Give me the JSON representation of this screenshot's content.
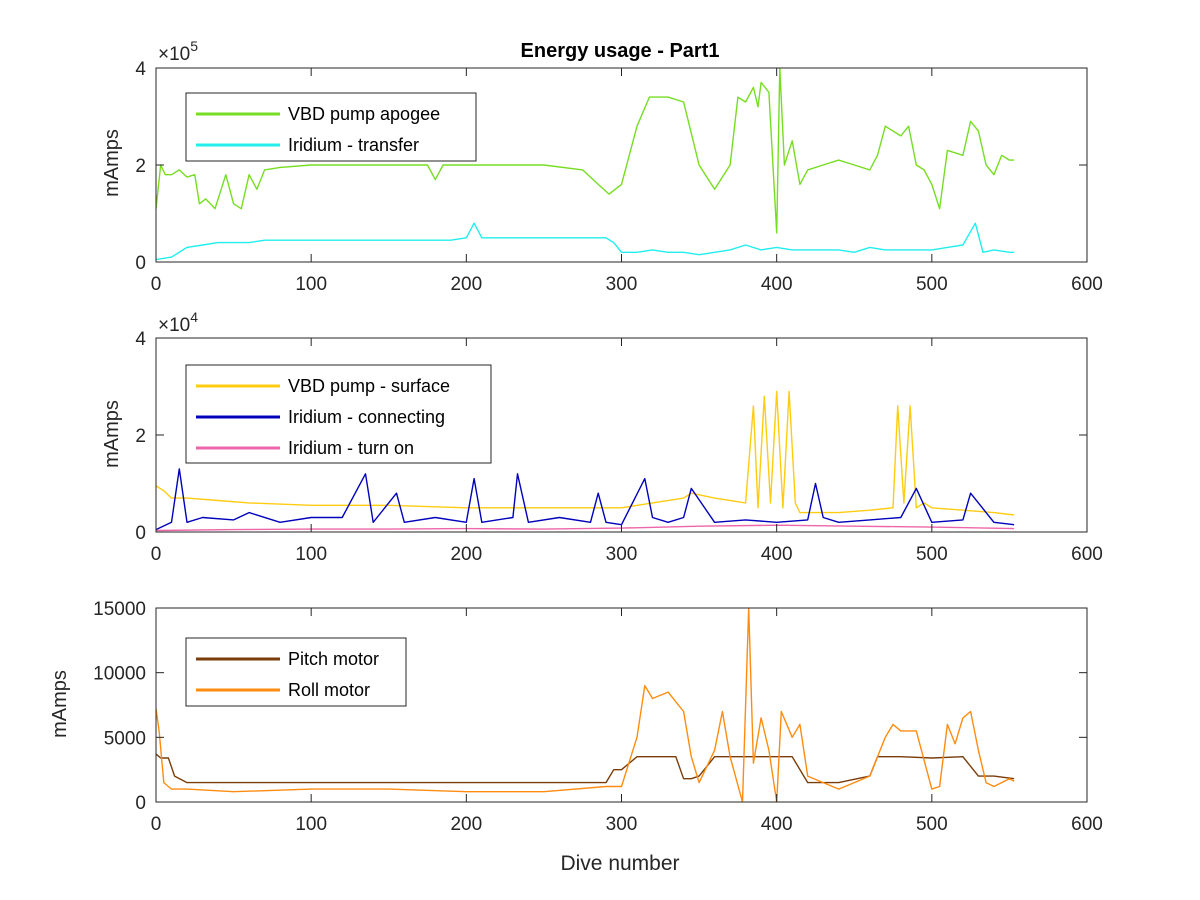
{
  "chart_data": [
    {
      "type": "line",
      "title": "Energy usage - Part1",
      "ylabel": "mAmps",
      "xlabel": "",
      "exponent_base": "×10",
      "exponent_power": "5",
      "xlim": [
        0,
        600
      ],
      "ylim": [
        0,
        400000
      ],
      "xticks": [
        0,
        100,
        200,
        300,
        400,
        500,
        600
      ],
      "yticks": [
        0,
        200000,
        400000
      ],
      "ytick_labels": [
        "0",
        "2",
        "4"
      ],
      "legend": "top-left",
      "grid": false,
      "series": [
        {
          "name": "VBD pump apogee",
          "color": "#77dd22",
          "x": [
            0,
            3,
            6,
            10,
            15,
            20,
            25,
            28,
            32,
            38,
            45,
            50,
            55,
            60,
            65,
            70,
            80,
            100,
            150,
            175,
            180,
            185,
            200,
            250,
            275,
            285,
            292,
            300,
            310,
            318,
            330,
            340,
            350,
            360,
            370,
            375,
            380,
            385,
            388,
            390,
            395,
            400,
            402,
            405,
            410,
            415,
            420,
            430,
            440,
            450,
            460,
            465,
            470,
            480,
            485,
            490,
            495,
            500,
            505,
            510,
            520,
            525,
            530,
            535,
            540,
            545,
            550,
            553
          ],
          "y": [
            110000,
            200000,
            180000,
            180000,
            190000,
            175000,
            180000,
            120000,
            130000,
            110000,
            180000,
            120000,
            110000,
            180000,
            150000,
            190000,
            195000,
            200000,
            200000,
            200000,
            170000,
            200000,
            200000,
            200000,
            190000,
            160000,
            140000,
            160000,
            280000,
            340000,
            340000,
            330000,
            200000,
            150000,
            200000,
            340000,
            330000,
            360000,
            320000,
            370000,
            350000,
            60000,
            400000,
            200000,
            250000,
            160000,
            190000,
            200000,
            210000,
            200000,
            190000,
            220000,
            280000,
            260000,
            280000,
            200000,
            190000,
            160000,
            110000,
            230000,
            220000,
            290000,
            270000,
            200000,
            180000,
            220000,
            210000,
            210000
          ]
        },
        {
          "name": "Iridium - transfer",
          "color": "#22eeee",
          "x": [
            0,
            10,
            20,
            30,
            40,
            50,
            60,
            70,
            80,
            90,
            100,
            110,
            120,
            130,
            140,
            150,
            160,
            170,
            180,
            190,
            200,
            205,
            210,
            220,
            230,
            240,
            250,
            260,
            270,
            280,
            290,
            295,
            300,
            310,
            320,
            330,
            340,
            350,
            360,
            370,
            380,
            390,
            400,
            410,
            420,
            430,
            440,
            450,
            460,
            470,
            480,
            490,
            500,
            510,
            520,
            528,
            533,
            540,
            550,
            553
          ],
          "y": [
            5000,
            10000,
            30000,
            35000,
            40000,
            40000,
            40000,
            45000,
            45000,
            45000,
            45000,
            45000,
            45000,
            45000,
            45000,
            45000,
            45000,
            45000,
            45000,
            45000,
            50000,
            80000,
            50000,
            50000,
            50000,
            50000,
            50000,
            50000,
            50000,
            50000,
            50000,
            40000,
            20000,
            20000,
            25000,
            20000,
            20000,
            15000,
            20000,
            25000,
            35000,
            25000,
            30000,
            25000,
            25000,
            25000,
            25000,
            20000,
            30000,
            25000,
            25000,
            25000,
            25000,
            30000,
            35000,
            80000,
            20000,
            25000,
            20000,
            20000
          ]
        }
      ]
    },
    {
      "type": "line",
      "title": "",
      "ylabel": "mAmps",
      "xlabel": "",
      "exponent_base": "×10",
      "exponent_power": "4",
      "xlim": [
        0,
        600
      ],
      "ylim": [
        0,
        40000
      ],
      "xticks": [
        0,
        100,
        200,
        300,
        400,
        500,
        600
      ],
      "yticks": [
        0,
        20000,
        40000
      ],
      "ytick_labels": [
        "0",
        "2",
        "4"
      ],
      "legend": "top-left",
      "grid": false,
      "series": [
        {
          "name": "VBD pump - surface",
          "color": "#ffcc11",
          "x": [
            0,
            5,
            10,
            20,
            40,
            60,
            100,
            150,
            200,
            250,
            300,
            320,
            340,
            345,
            360,
            380,
            385,
            388,
            392,
            396,
            400,
            404,
            408,
            412,
            415,
            420,
            440,
            460,
            475,
            478,
            482,
            486,
            490,
            495,
            500,
            520,
            540,
            553
          ],
          "y": [
            9500,
            8500,
            7000,
            7000,
            6500,
            6000,
            5500,
            5500,
            5000,
            5000,
            5000,
            6000,
            7000,
            8000,
            7000,
            6000,
            26000,
            5000,
            28000,
            6000,
            29000,
            5000,
            29000,
            6000,
            4000,
            4000,
            4000,
            4500,
            5000,
            26000,
            6000,
            26000,
            5000,
            6000,
            5000,
            4500,
            4000,
            3500
          ]
        },
        {
          "name": "Iridium - connecting",
          "color": "#0000bb",
          "x": [
            0,
            10,
            15,
            20,
            30,
            50,
            60,
            80,
            100,
            120,
            135,
            140,
            155,
            160,
            180,
            200,
            205,
            210,
            230,
            233,
            240,
            260,
            280,
            285,
            290,
            300,
            315,
            320,
            330,
            340,
            345,
            360,
            380,
            400,
            420,
            425,
            430,
            440,
            460,
            480,
            490,
            500,
            520,
            525,
            540,
            553
          ],
          "y": [
            500,
            2000,
            13000,
            2000,
            3000,
            2500,
            4000,
            2000,
            3000,
            3000,
            12000,
            2000,
            8000,
            2000,
            3000,
            2000,
            11000,
            2000,
            3000,
            12000,
            2000,
            3000,
            2000,
            8000,
            2000,
            1500,
            11000,
            3000,
            2000,
            3000,
            9000,
            2000,
            2500,
            2000,
            2500,
            10000,
            3000,
            2000,
            2500,
            3000,
            9000,
            2000,
            2500,
            8000,
            2000,
            1500
          ]
        },
        {
          "name": "Iridium - turn on",
          "color": "#ee66aa",
          "x": [
            0,
            50,
            100,
            150,
            200,
            250,
            300,
            350,
            400,
            450,
            500,
            553
          ],
          "y": [
            300,
            500,
            600,
            600,
            700,
            600,
            800,
            1200,
            1400,
            1200,
            1000,
            700
          ]
        }
      ]
    },
    {
      "type": "line",
      "title": "",
      "ylabel": "mAmps",
      "xlabel": "Dive number",
      "xlim": [
        0,
        600
      ],
      "ylim": [
        0,
        15000
      ],
      "xticks": [
        0,
        100,
        200,
        300,
        400,
        500,
        600
      ],
      "yticks": [
        0,
        5000,
        10000,
        15000
      ],
      "ytick_labels": [
        "0",
        "5000",
        "10000",
        "15000"
      ],
      "legend": "top-left",
      "grid": false,
      "series": [
        {
          "name": "Pitch motor",
          "color": "#7a3d0a",
          "x": [
            0,
            3,
            8,
            12,
            20,
            40,
            60,
            80,
            100,
            150,
            200,
            250,
            290,
            295,
            300,
            310,
            320,
            335,
            340,
            345,
            350,
            360,
            375,
            390,
            400,
            410,
            420,
            440,
            460,
            465,
            470,
            480,
            500,
            520,
            530,
            540,
            553
          ],
          "y": [
            3700,
            3400,
            3400,
            2000,
            1500,
            1500,
            1500,
            1500,
            1500,
            1500,
            1500,
            1500,
            1500,
            2500,
            2500,
            3500,
            3500,
            3500,
            1800,
            1800,
            2000,
            3500,
            3500,
            3500,
            3500,
            3500,
            1500,
            1500,
            2000,
            3500,
            3500,
            3500,
            3400,
            3500,
            2000,
            2000,
            1800
          ]
        },
        {
          "name": "Roll motor",
          "color": "#ff8c11",
          "x": [
            0,
            2,
            5,
            10,
            20,
            50,
            100,
            150,
            200,
            250,
            290,
            300,
            310,
            315,
            320,
            330,
            340,
            345,
            350,
            360,
            365,
            370,
            378,
            382,
            385,
            390,
            395,
            400,
            403,
            410,
            415,
            420,
            430,
            440,
            450,
            460,
            470,
            475,
            480,
            490,
            500,
            505,
            510,
            515,
            520,
            525,
            530,
            535,
            540,
            545,
            550,
            553
          ],
          "y": [
            7200,
            5500,
            1500,
            1000,
            1000,
            800,
            1000,
            1000,
            800,
            800,
            1200,
            1200,
            5000,
            9000,
            8000,
            8500,
            7000,
            3500,
            1500,
            4000,
            7000,
            3500,
            0,
            15000,
            3000,
            6500,
            4000,
            0,
            7000,
            5000,
            6000,
            2000,
            1500,
            1000,
            1500,
            2000,
            5000,
            6000,
            5500,
            5500,
            1000,
            1200,
            6000,
            4500,
            6500,
            7000,
            4000,
            1500,
            1200,
            1500,
            1800,
            1600
          ]
        }
      ]
    }
  ]
}
